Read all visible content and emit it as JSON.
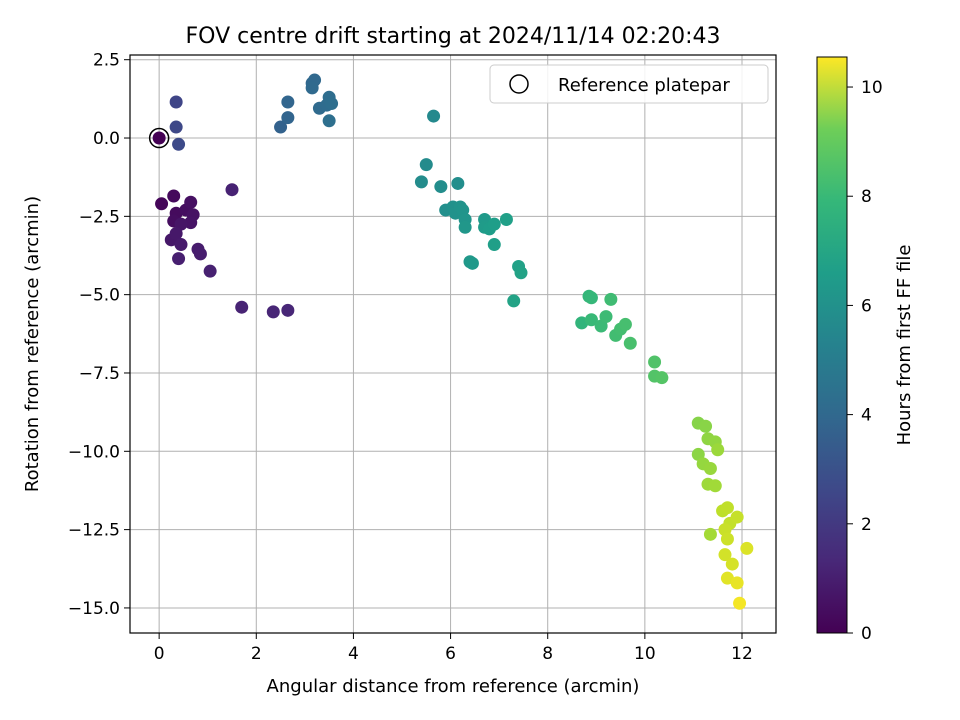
{
  "chart_data": {
    "type": "scatter",
    "title": "FOV centre drift starting at 2024/11/14 02:20:43",
    "xlabel": "Angular distance from reference (arcmin)",
    "ylabel": "Rotation from reference (arcmin)",
    "xlim": [
      -0.6,
      12.7
    ],
    "ylim": [
      -15.8,
      2.65
    ],
    "xticks": [
      0,
      2,
      4,
      6,
      8,
      10,
      12
    ],
    "xtick_labels": [
      "0",
      "2",
      "4",
      "6",
      "8",
      "10",
      "12"
    ],
    "yticks": [
      2.5,
      0.0,
      -2.5,
      -5.0,
      -7.5,
      -10.0,
      -12.5,
      -15.0
    ],
    "ytick_labels": [
      "2.5",
      "0.0",
      "−2.5",
      "−5.0",
      "−7.5",
      "−10.0",
      "−12.5",
      "−15.0"
    ],
    "grid": true,
    "legend": {
      "position": "top-right",
      "entries": [
        {
          "label": "Reference platepar",
          "marker": "open-circle"
        }
      ]
    },
    "reference_point": {
      "x": 0,
      "y": 0,
      "hours": 0
    },
    "colorbar": {
      "label": "Hours from first FF file",
      "colormap": "viridis",
      "range": [
        0,
        10.55
      ],
      "ticks": [
        0,
        2,
        4,
        6,
        8,
        10
      ],
      "tick_labels": [
        "0",
        "2",
        "4",
        "6",
        "8",
        "10"
      ]
    },
    "points": [
      [
        0.0,
        0.0,
        0.0
      ],
      [
        0.3,
        -1.85,
        0.25
      ],
      [
        0.05,
        -2.1,
        0.15
      ],
      [
        0.35,
        -2.4,
        0.3
      ],
      [
        0.3,
        -2.65,
        0.35
      ],
      [
        0.55,
        -2.3,
        0.4
      ],
      [
        0.65,
        -2.05,
        0.45
      ],
      [
        0.7,
        -2.45,
        0.5
      ],
      [
        0.65,
        -2.7,
        0.55
      ],
      [
        0.45,
        -2.75,
        0.6
      ],
      [
        0.25,
        -3.25,
        0.65
      ],
      [
        0.35,
        -3.05,
        0.7
      ],
      [
        0.45,
        -3.4,
        0.75
      ],
      [
        0.8,
        -3.55,
        0.8
      ],
      [
        0.85,
        -3.7,
        0.85
      ],
      [
        0.4,
        -3.85,
        0.9
      ],
      [
        1.05,
        -4.25,
        0.95
      ],
      [
        1.5,
        -1.65,
        1.0
      ],
      [
        1.7,
        -5.4,
        1.05
      ],
      [
        2.35,
        -5.55,
        1.1
      ],
      [
        2.65,
        -5.5,
        1.15
      ],
      [
        0.35,
        1.15,
        2.2
      ],
      [
        0.35,
        0.35,
        2.3
      ],
      [
        0.4,
        -0.2,
        2.4
      ],
      [
        2.5,
        0.35,
        3.3
      ],
      [
        2.65,
        0.65,
        3.4
      ],
      [
        2.65,
        1.15,
        3.45
      ],
      [
        3.15,
        1.75,
        3.5
      ],
      [
        3.2,
        1.85,
        3.55
      ],
      [
        3.15,
        1.6,
        3.6
      ],
      [
        3.3,
        0.95,
        3.65
      ],
      [
        3.45,
        1.05,
        3.7
      ],
      [
        3.5,
        1.3,
        3.75
      ],
      [
        3.55,
        1.1,
        3.8
      ],
      [
        3.5,
        0.55,
        3.85
      ],
      [
        5.65,
        0.7,
        5.0
      ],
      [
        5.5,
        -0.85,
        5.05
      ],
      [
        5.4,
        -1.4,
        5.1
      ],
      [
        5.8,
        -1.55,
        5.15
      ],
      [
        6.15,
        -1.45,
        5.2
      ],
      [
        5.9,
        -2.3,
        5.25
      ],
      [
        6.05,
        -2.2,
        5.3
      ],
      [
        6.1,
        -2.4,
        5.35
      ],
      [
        6.2,
        -2.2,
        5.4
      ],
      [
        6.25,
        -2.3,
        5.45
      ],
      [
        6.3,
        -2.6,
        5.5
      ],
      [
        6.3,
        -2.85,
        5.55
      ],
      [
        6.4,
        -3.95,
        5.6
      ],
      [
        6.45,
        -4.0,
        5.65
      ],
      [
        6.7,
        -2.6,
        5.7
      ],
      [
        6.7,
        -2.85,
        5.75
      ],
      [
        6.8,
        -2.9,
        5.8
      ],
      [
        6.9,
        -2.75,
        5.85
      ],
      [
        6.9,
        -3.4,
        5.9
      ],
      [
        7.15,
        -2.6,
        5.95
      ],
      [
        7.4,
        -4.1,
        6.0
      ],
      [
        7.45,
        -4.3,
        6.05
      ],
      [
        7.3,
        -5.2,
        6.1
      ],
      [
        8.7,
        -5.9,
        6.9
      ],
      [
        8.85,
        -5.05,
        7.0
      ],
      [
        8.9,
        -5.1,
        7.05
      ],
      [
        8.9,
        -5.8,
        7.1
      ],
      [
        9.1,
        -6.0,
        7.15
      ],
      [
        9.2,
        -5.7,
        7.2
      ],
      [
        9.3,
        -5.15,
        7.25
      ],
      [
        9.4,
        -6.3,
        7.3
      ],
      [
        9.5,
        -6.1,
        7.35
      ],
      [
        9.6,
        -5.95,
        7.4
      ],
      [
        9.7,
        -6.55,
        7.45
      ],
      [
        10.2,
        -7.15,
        7.6
      ],
      [
        10.2,
        -7.6,
        7.65
      ],
      [
        10.35,
        -7.65,
        7.7
      ],
      [
        11.1,
        -9.1,
        8.6
      ],
      [
        11.25,
        -9.2,
        8.65
      ],
      [
        11.1,
        -10.1,
        8.7
      ],
      [
        11.3,
        -9.6,
        8.75
      ],
      [
        11.45,
        -9.7,
        8.8
      ],
      [
        11.2,
        -10.4,
        8.85
      ],
      [
        11.35,
        -10.55,
        8.9
      ],
      [
        11.5,
        -9.95,
        8.95
      ],
      [
        11.3,
        -11.05,
        9.0
      ],
      [
        11.45,
        -11.1,
        9.05
      ],
      [
        11.35,
        -12.65,
        9.1
      ],
      [
        11.6,
        -11.9,
        9.5
      ],
      [
        11.7,
        -11.8,
        9.55
      ],
      [
        11.75,
        -12.3,
        9.6
      ],
      [
        11.9,
        -12.1,
        9.65
      ],
      [
        11.65,
        -12.5,
        9.7
      ],
      [
        11.7,
        -12.8,
        9.75
      ],
      [
        11.65,
        -13.3,
        9.85
      ],
      [
        11.8,
        -13.6,
        9.9
      ],
      [
        12.1,
        -13.1,
        10.0
      ],
      [
        11.7,
        -14.05,
        10.1
      ],
      [
        11.9,
        -14.2,
        10.2
      ],
      [
        11.95,
        -14.85,
        10.4
      ]
    ]
  }
}
